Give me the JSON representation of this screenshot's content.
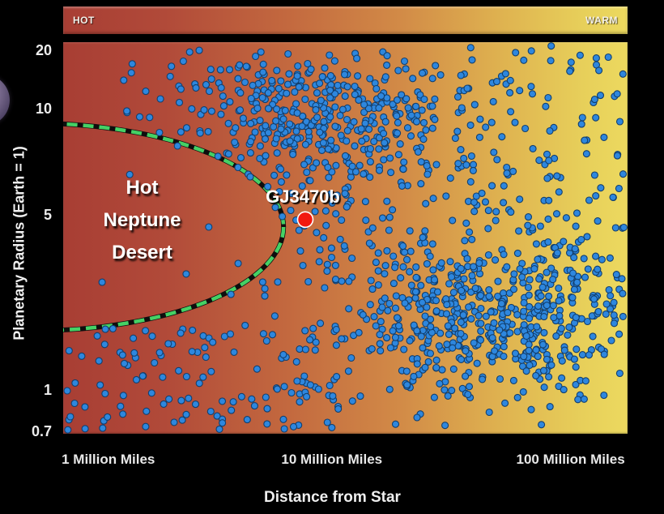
{
  "window": {
    "background": "#000000"
  },
  "bar": {
    "hot": "HOT",
    "warm": "WARM"
  },
  "axes": {
    "y_label": "Planetary Radius (Earth = 1)",
    "x_label": "Distance from Star"
  },
  "labels": {
    "desert": [
      "Hot",
      "Neptune",
      "Desert"
    ],
    "gj": "GJ3470b"
  },
  "colors": {
    "background": "#000000",
    "tick_text": "#ededed",
    "label_text": "#ffffff",
    "planet_art": "#7c6d91"
  },
  "chart_data": {
    "type": "scatter",
    "title": "",
    "xlabel": "Distance from Star",
    "ylabel": "Planetary Radius (Earth = 1)",
    "x_scale": "log",
    "y_scale": "log",
    "x_range_million_miles": [
      0.65,
      170
    ],
    "y_range_earth_radii": [
      0.7,
      20
    ],
    "x_ticks": [
      {
        "label": "1 Million Miles",
        "f": 0.08
      },
      {
        "label": "10 Million Miles",
        "f": 0.476
      },
      {
        "label": "100 Million Miles",
        "f": 0.899
      }
    ],
    "y_ticks": [
      {
        "label": "20",
        "f": 0.023
      },
      {
        "label": "10",
        "f": 0.172
      },
      {
        "label": "5",
        "f": 0.443
      },
      {
        "label": "1",
        "f": 0.89
      },
      {
        "label": "0.7",
        "f": 0.996
      }
    ],
    "temperature_gradient": [
      {
        "pos": 0.0,
        "color": "#a83e34"
      },
      {
        "pos": 0.18,
        "color": "#b14a39"
      },
      {
        "pos": 0.4,
        "color": "#c3693f"
      },
      {
        "pos": 0.6,
        "color": "#d28b47"
      },
      {
        "pos": 0.78,
        "color": "#dfb350"
      },
      {
        "pos": 0.92,
        "color": "#e7cf5a"
      },
      {
        "pos": 1.0,
        "color": "#ecd95f"
      }
    ],
    "highlight_point": {
      "name": "GJ3470b",
      "distance_million_miles": 7.5,
      "radius_earth": 5,
      "fx": 0.429,
      "fy": 0.453,
      "radius_px": 9.5,
      "fill": "#f2190f",
      "stroke": "#ffffff"
    },
    "desert_region": {
      "label": "Hot Neptune Desert",
      "ellipse": {
        "cx": -0.0545,
        "cy": 0.472,
        "rx": 0.445,
        "ry": 0.265
      },
      "outline_black": "#0e0e0e",
      "outline_green": "#45d165",
      "dash": "13 7"
    },
    "point_style": {
      "radius_px": 4,
      "fill": "#2e87de",
      "stroke": "#123f6e"
    },
    "seed": 42,
    "clusters": [
      {
        "type": "gauss",
        "n": 270,
        "cx": 0.46,
        "cy": 0.19,
        "sx": 0.1,
        "sy": 0.075,
        "name": "hot-jupiter-cluster"
      },
      {
        "type": "gauss",
        "n": 110,
        "cx": 0.42,
        "cy": 0.21,
        "sx": 0.18,
        "sy": 0.13,
        "name": "hot-jupiter-halo"
      },
      {
        "type": "gauss",
        "n": 480,
        "cx": 0.755,
        "cy": 0.7,
        "sx": 0.135,
        "sy": 0.1,
        "name": "sub-neptune-band"
      },
      {
        "type": "gauss",
        "n": 160,
        "cx": 0.8,
        "cy": 0.68,
        "sx": 0.21,
        "sy": 0.17,
        "name": "sub-neptune-halo"
      },
      {
        "type": "uniform",
        "n": 130,
        "x0": 0.3,
        "x1": 1.0,
        "y0": 0.28,
        "y1": 0.62,
        "name": "mid-right-field"
      },
      {
        "type": "uniform",
        "n": 120,
        "x0": 0.0,
        "x1": 0.5,
        "y0": 0.73,
        "y1": 0.995,
        "name": "bottom-left-field"
      },
      {
        "type": "uniform",
        "n": 85,
        "x0": 0.55,
        "x1": 1.0,
        "y0": 0.02,
        "y1": 0.35,
        "name": "top-right-field"
      },
      {
        "type": "uniform",
        "n": 40,
        "x0": 0.1,
        "x1": 0.38,
        "y0": 0.02,
        "y1": 0.3,
        "name": "top-left-sparse"
      },
      {
        "type": "uniform",
        "n": 55,
        "x0": 0.05,
        "x1": 1.0,
        "y0": 0.0,
        "y1": 1.0,
        "name": "global-sparse"
      }
    ],
    "desert_points": [
      [
        0.258,
        0.472
      ],
      [
        0.069,
        0.613
      ],
      [
        0.218,
        0.592
      ],
      [
        0.118,
        0.338
      ],
      [
        0.31,
        0.565
      ]
    ],
    "legend": "none",
    "grid": false,
    "description": "Known exoplanets (blue dots) by distance from star vs planetary radius; dashed green ellipse marks the Hot Neptune Desert; red dot marks GJ3470b; background shades from hot (red) to warm (yellow)."
  }
}
